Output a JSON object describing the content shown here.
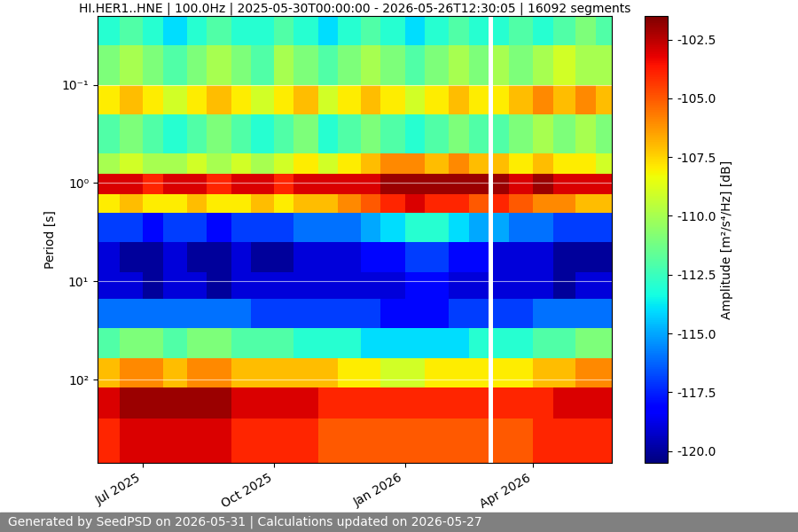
{
  "chart_data": {
    "type": "heatmap",
    "title": "HI.HER1..HNE | 100.0Hz | 2025-05-30T00:00:00 - 2026-05-26T12:30:05 | 16092 segments",
    "y_label": "Period [s]",
    "colorbar_label": "Amplitude [m²/s⁴/Hz] [dB]",
    "footer": "Generated by SeedPSD on 2026-05-31 | Calculations updated on 2026-05-27",
    "log": "y",
    "grid": "y",
    "x": [
      "2025-05-30T00:00:00",
      "2025-06-15",
      "2025-07-01",
      "2025-07-15",
      "2025-08-01",
      "2025-08-15",
      "2025-09-01",
      "2025-09-15",
      "2025-10-01",
      "2025-10-15",
      "2025-11-01",
      "2025-11-15",
      "2025-12-01",
      "2025-12-15",
      "2026-01-01",
      "2026-01-15",
      "2026-02-01",
      "2026-02-15",
      "2026-03-01",
      "2026-03-04",
      "2026-03-15",
      "2026-04-01",
      "2026-04-15",
      "2026-05-01",
      "2026-05-15",
      "2026-05-26T12:30:05"
    ],
    "y": [
      0.02,
      0.04,
      0.1,
      0.2,
      0.5,
      0.8,
      1.3,
      2,
      4,
      8,
      15,
      30,
      60,
      120,
      250,
      700
    ],
    "cells": [
      [
        -113,
        -112,
        -113,
        -114,
        -113,
        -112,
        -113,
        -113,
        -112,
        -113,
        -114,
        -113,
        -112,
        -113,
        -114,
        -113,
        -112,
        -113,
        null,
        -113,
        -112,
        -113,
        -112,
        -111,
        -112
      ],
      [
        -111,
        -110,
        -111,
        -112,
        -111,
        -110,
        -111,
        -112,
        -110,
        -111,
        -112,
        -111,
        -110,
        -111,
        -112,
        -111,
        -110,
        -111,
        null,
        -110,
        -111,
        -110,
        -109,
        -110,
        -110
      ],
      [
        -108,
        -107,
        -108,
        -109,
        -108,
        -107,
        -108,
        -109,
        -108,
        -107,
        -109,
        -108,
        -107,
        -108,
        -109,
        -108,
        -107,
        -108,
        null,
        -108,
        -107,
        -106,
        -107,
        -106,
        -107
      ],
      [
        -112,
        -111,
        -112,
        -113,
        -112,
        -111,
        -112,
        -113,
        -112,
        -111,
        -113,
        -112,
        -111,
        -112,
        -113,
        -112,
        -111,
        -112,
        null,
        -112,
        -111,
        -110,
        -111,
        -110,
        -111
      ],
      [
        -110,
        -109,
        -110,
        -110,
        -109,
        -110,
        -109,
        -110,
        -109,
        -108,
        -109,
        -108,
        -107,
        -106,
        -106,
        -107,
        -106,
        -107,
        null,
        -107,
        -108,
        -107,
        -108,
        -108,
        -109
      ],
      [
        -103,
        -103,
        -104,
        -103,
        -103,
        -104,
        -103,
        -103,
        -104,
        -103,
        -103,
        -103,
        -103,
        -102,
        -102,
        -102,
        -102,
        -102,
        null,
        -102,
        -103,
        -102,
        -103,
        -103,
        -103
      ],
      [
        -108,
        -107,
        -108,
        -108,
        -107,
        -108,
        -108,
        -107,
        -108,
        -107,
        -107,
        -106,
        -105,
        -104,
        -103,
        -104,
        -104,
        -105,
        null,
        -104,
        -105,
        -106,
        -106,
        -107,
        -107
      ],
      [
        -117,
        -117,
        -118,
        -117,
        -117,
        -118,
        -117,
        -117,
        -117,
        -116,
        -116,
        -116,
        -115,
        -114,
        -113,
        -113,
        -114,
        -115,
        null,
        -115,
        -116,
        -116,
        -117,
        -117,
        -117
      ],
      [
        -119,
        -120,
        -120,
        -119,
        -120,
        -120,
        -119,
        -120,
        -120,
        -119,
        -119,
        -119,
        -118,
        -118,
        -117,
        -117,
        -118,
        -118,
        null,
        -119,
        -119,
        -119,
        -120,
        -120,
        -120
      ],
      [
        -119,
        -119,
        -120,
        -119,
        -119,
        -120,
        -119,
        -119,
        -119,
        -119,
        -119,
        -119,
        -119,
        -119,
        -118,
        -118,
        -119,
        -119,
        null,
        -119,
        -119,
        -119,
        -120,
        -119,
        -119
      ],
      [
        -116,
        -116,
        -116,
        -116,
        -116,
        -116,
        -116,
        -117,
        -117,
        -117,
        -117,
        -117,
        -117,
        -118,
        -118,
        -118,
        -117,
        -117,
        null,
        -117,
        -117,
        -116,
        -116,
        -116,
        -116
      ],
      [
        -112,
        -111,
        -111,
        -112,
        -111,
        -111,
        -112,
        -112,
        -112,
        -113,
        -113,
        -113,
        -114,
        -114,
        -114,
        -114,
        -114,
        -113,
        null,
        -113,
        -113,
        -112,
        -112,
        -111,
        -111
      ],
      [
        -107,
        -106,
        -106,
        -107,
        -106,
        -106,
        -107,
        -107,
        -107,
        -107,
        -107,
        -108,
        -108,
        -109,
        -109,
        -108,
        -108,
        -108,
        null,
        -108,
        -108,
        -107,
        -107,
        -106,
        -106
      ],
      [
        -103,
        -102,
        -102,
        -102,
        -102,
        -102,
        -103,
        -103,
        -103,
        -103,
        -104,
        -104,
        -104,
        -104,
        -104,
        -104,
        -104,
        -104,
        null,
        -104,
        -104,
        -104,
        -103,
        -103,
        -103
      ],
      [
        -104,
        -103,
        -103,
        -103,
        -103,
        -103,
        -104,
        -104,
        -104,
        -104,
        -105,
        -105,
        -105,
        -105,
        -105,
        -105,
        -105,
        -105,
        null,
        -105,
        -105,
        -104,
        -104,
        -104,
        -104
      ]
    ],
    "xlim": [
      "2025-05-30T00:00:00",
      "2026-05-26T12:30:05"
    ],
    "xticks": [
      {
        "value": "2025-07-01",
        "label": "Jul 2025"
      },
      {
        "value": "2025-10-01",
        "label": "Oct 2025"
      },
      {
        "value": "2026-01-01",
        "label": "Jan 2026"
      },
      {
        "value": "2026-04-01",
        "label": "Apr 2026"
      }
    ],
    "ylim": [
      700,
      0.02
    ],
    "yticks": [
      {
        "value": 0.1,
        "label": "10⁻¹"
      },
      {
        "value": 1,
        "label": "10⁰"
      },
      {
        "value": 10,
        "label": "10¹"
      },
      {
        "value": 100,
        "label": "10²"
      }
    ],
    "clim": [
      -120.5,
      -101.5
    ],
    "cticks": [
      {
        "value": -120,
        "label": "-120.0"
      },
      -117.5,
      {
        "value": -115,
        "label": "-115.0"
      },
      -112.5,
      {
        "value": -110,
        "label": "-110.0"
      },
      -107.5,
      {
        "value": -105,
        "label": "-105.0"
      },
      -102.5
    ]
  }
}
